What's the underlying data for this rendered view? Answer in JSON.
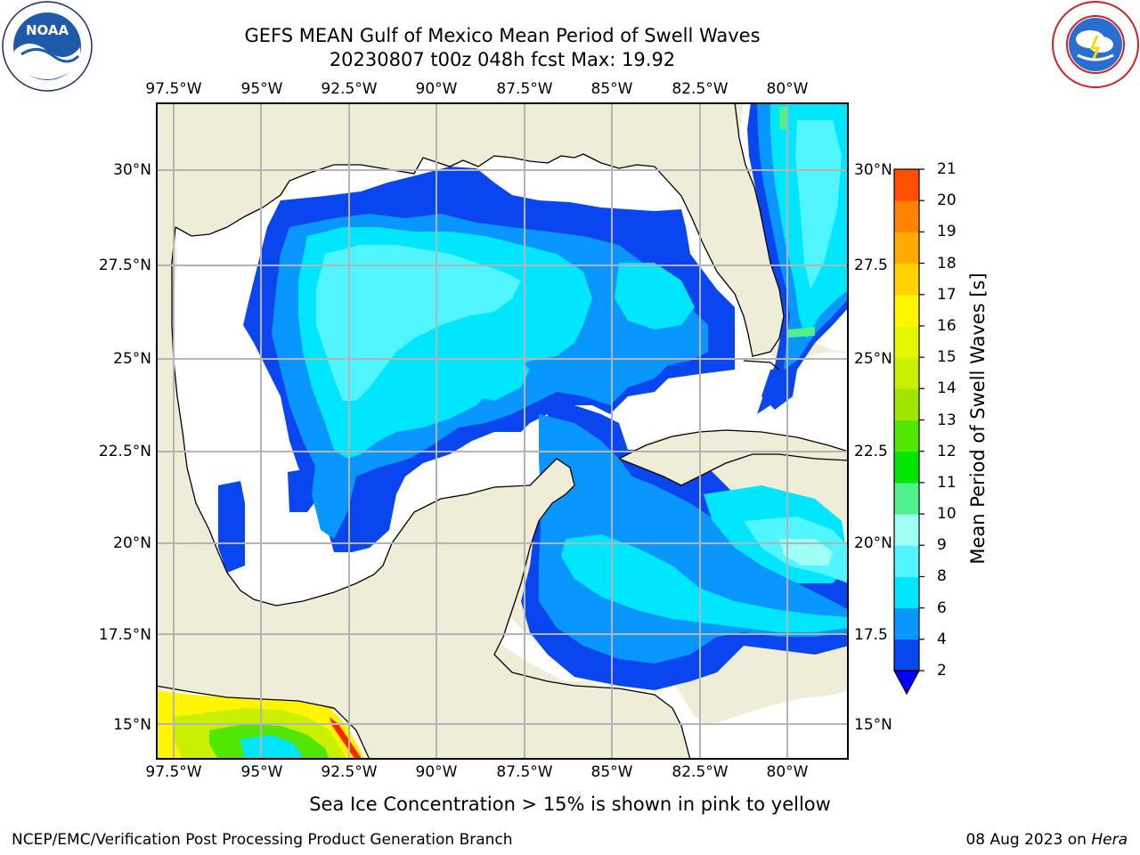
{
  "header": {
    "title_line1": "GEFS MEAN Gulf of Mexico Mean Period of Swell Waves",
    "title_line2": "20230807 t00z 048h fcst   Max: 19.92"
  },
  "logos": {
    "left": {
      "name": "NOAA",
      "text": "NOAA"
    },
    "right": {
      "name": "National Weather Service"
    }
  },
  "map": {
    "lon_labels": [
      "97.5°W",
      "95°W",
      "92.5°W",
      "90°W",
      "87.5°W",
      "85°W",
      "82.5°W",
      "80°W"
    ],
    "lat_labels_left": [
      "30°N",
      "27.5°N",
      "25°N",
      "22.5°N",
      "20°N",
      "17.5°N",
      "15°N"
    ],
    "lat_labels_right": [
      "30°N",
      "27.5",
      "25°N",
      "22.5",
      "20°N",
      "17.5",
      "15°N"
    ],
    "extent": {
      "lon_min": -98.0,
      "lon_max": -79.0,
      "lat_min": 14.0,
      "lat_max": 32.0
    },
    "colors": {
      "land": "#efedd8",
      "ocean_nodata": "#ffffff",
      "grid": "#b4b4b4",
      "coast": "#000000"
    }
  },
  "colorbar": {
    "title": "Mean Period of Swell Waves [s]",
    "tick_labels": [
      "2",
      "4",
      "6",
      "8",
      "9",
      "10",
      "11",
      "12",
      "13",
      "14",
      "15",
      "16",
      "17",
      "18",
      "19",
      "20",
      "21"
    ],
    "bin_colors": [
      "#0a46f0",
      "#0a96ff",
      "#00e6ff",
      "#50f5ff",
      "#a0fff5",
      "#50f08c",
      "#00e600",
      "#50e600",
      "#a0e600",
      "#c8f000",
      "#e6f500",
      "#fff500",
      "#ffd200",
      "#ffaa00",
      "#ff8200",
      "#ff5000",
      "#ff2800",
      "#ff0000"
    ],
    "underflow_color": "#0000ff"
  },
  "caption": "Sea Ice Concentration > 15% is shown in pink to yellow",
  "footer": {
    "left": "NCEP/EMC/Verification Post Processing Product Generation Branch",
    "right_date": "08 Aug 2023 on ",
    "right_host": "Hera"
  }
}
